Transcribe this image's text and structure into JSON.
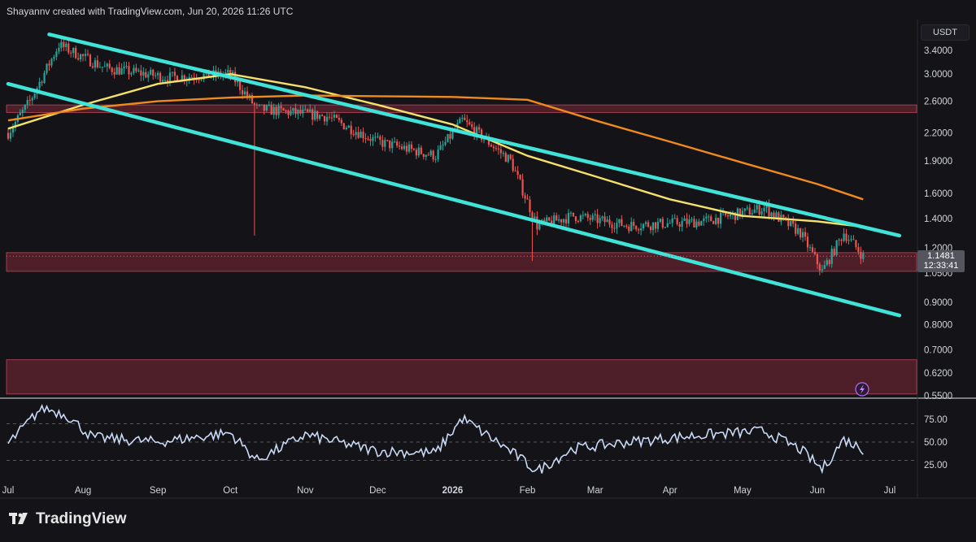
{
  "header": {
    "attribution": "Shayannv created with TradingView.com, Jun 20, 2026 11:26 UTC"
  },
  "currency": "USDT",
  "last_price": {
    "value": "1.1481",
    "countdown": "12:33:41"
  },
  "brand": {
    "name": "TradingView"
  },
  "colors": {
    "background": "#141418",
    "up_candle": "#26a69a",
    "down_candle": "#ef5350",
    "channel": "#3fe3d8",
    "ma_fast": "#f5e06a",
    "ma_slow": "#f08a1c",
    "zone": "#8a2a3a",
    "rsi_line": "#c9d9f5"
  },
  "chart_data": [
    {
      "type": "candlestick",
      "title": "",
      "y_axis": {
        "scale": "log",
        "ticks": [
          "3.4000",
          "3.0000",
          "2.6000",
          "2.2000",
          "1.9000",
          "1.6000",
          "1.4000",
          "1.2000",
          "1.0500",
          "0.9000",
          "0.8000",
          "0.7000",
          "0.6200",
          "0.5500"
        ]
      },
      "x_axis": {
        "ticks": [
          "Jul",
          "Aug",
          "Sep",
          "Oct",
          "Nov",
          "Dec",
          "2026",
          "Feb",
          "Mar",
          "Apr",
          "May",
          "Jun",
          "Jul"
        ]
      },
      "key_points": [
        {
          "date": "2025-07-01",
          "close": 2.2
        },
        {
          "date": "2025-07-10",
          "close": 2.6
        },
        {
          "date": "2025-07-22",
          "close": 3.5
        },
        {
          "date": "2025-08-10",
          "close": 3.1
        },
        {
          "date": "2025-09-05",
          "close": 2.95
        },
        {
          "date": "2025-10-01",
          "close": 3.0
        },
        {
          "date": "2025-10-12",
          "close": 2.5
        },
        {
          "date": "2025-11-10",
          "close": 2.4
        },
        {
          "date": "2025-12-01",
          "close": 2.1
        },
        {
          "date": "2025-12-25",
          "close": 1.95
        },
        {
          "date": "2026-01-05",
          "close": 2.35
        },
        {
          "date": "2026-01-25",
          "close": 1.9
        },
        {
          "date": "2026-02-05",
          "close": 1.35
        },
        {
          "date": "2026-02-20",
          "close": 1.42
        },
        {
          "date": "2026-03-15",
          "close": 1.35
        },
        {
          "date": "2026-04-15",
          "close": 1.38
        },
        {
          "date": "2026-05-10",
          "close": 1.48
        },
        {
          "date": "2026-05-25",
          "close": 1.3
        },
        {
          "date": "2026-06-03",
          "close": 1.06
        },
        {
          "date": "2026-06-12",
          "close": 1.3
        },
        {
          "date": "2026-06-20",
          "close": 1.1481
        }
      ],
      "wicks": [
        {
          "date": "2025-10-11",
          "low": 1.28
        },
        {
          "date": "2026-02-03",
          "low": 1.12
        },
        {
          "date": "2026-01-05",
          "high": 2.4
        },
        {
          "date": "2026-05-12",
          "high": 1.55
        },
        {
          "date": "2026-06-03",
          "low": 1.05
        }
      ],
      "moving_averages": [
        {
          "color": "ma_fast",
          "points": [
            {
              "date": "2025-07-01",
              "value": 2.25
            },
            {
              "date": "2025-08-01",
              "value": 2.55
            },
            {
              "date": "2025-09-01",
              "value": 2.85
            },
            {
              "date": "2025-10-01",
              "value": 3.0
            },
            {
              "date": "2025-11-01",
              "value": 2.8
            },
            {
              "date": "2025-12-01",
              "value": 2.55
            },
            {
              "date": "2026-01-01",
              "value": 2.3
            },
            {
              "date": "2026-02-01",
              "value": 1.95
            },
            {
              "date": "2026-03-01",
              "value": 1.75
            },
            {
              "date": "2026-04-01",
              "value": 1.55
            },
            {
              "date": "2026-05-01",
              "value": 1.42
            },
            {
              "date": "2026-06-01",
              "value": 1.38
            },
            {
              "date": "2026-06-20",
              "value": 1.34
            }
          ]
        },
        {
          "color": "ma_slow",
          "points": [
            {
              "date": "2025-07-01",
              "value": 2.35
            },
            {
              "date": "2025-08-01",
              "value": 2.5
            },
            {
              "date": "2025-09-01",
              "value": 2.6
            },
            {
              "date": "2025-10-01",
              "value": 2.65
            },
            {
              "date": "2025-11-01",
              "value": 2.68
            },
            {
              "date": "2025-12-01",
              "value": 2.67
            },
            {
              "date": "2026-01-01",
              "value": 2.66
            },
            {
              "date": "2026-02-01",
              "value": 2.62
            },
            {
              "date": "2026-03-01",
              "value": 2.35
            },
            {
              "date": "2026-04-01",
              "value": 2.1
            },
            {
              "date": "2026-05-01",
              "value": 1.88
            },
            {
              "date": "2026-06-01",
              "value": 1.68
            },
            {
              "date": "2026-06-20",
              "value": 1.55
            }
          ]
        }
      ],
      "channel": {
        "upper": [
          {
            "date": "2025-07-18",
            "value": 3.7
          },
          {
            "date": "2026-07-05",
            "value": 1.28
          }
        ],
        "lower": [
          {
            "date": "2025-07-01",
            "value": 2.85
          },
          {
            "date": "2026-07-05",
            "value": 0.84
          }
        ]
      },
      "zones": [
        {
          "low": 2.45,
          "high": 2.55
        },
        {
          "low": 1.06,
          "high": 1.17
        },
        {
          "low": 0.555,
          "high": 0.665
        }
      ],
      "last_price": 1.1481
    },
    {
      "type": "line",
      "title": "",
      "y_axis": {
        "range": [
          10,
          92
        ],
        "ticks": [
          "75.00",
          "50.00",
          "25.00"
        ]
      },
      "reference_lines": [
        70,
        50,
        30
      ],
      "key_points": [
        {
          "date": "2025-07-01",
          "value": 48
        },
        {
          "date": "2025-07-15",
          "value": 88
        },
        {
          "date": "2025-07-25",
          "value": 80
        },
        {
          "date": "2025-08-05",
          "value": 55
        },
        {
          "date": "2025-09-01",
          "value": 50
        },
        {
          "date": "2025-10-01",
          "value": 60
        },
        {
          "date": "2025-10-12",
          "value": 30
        },
        {
          "date": "2025-11-01",
          "value": 58
        },
        {
          "date": "2025-12-01",
          "value": 40
        },
        {
          "date": "2025-12-25",
          "value": 38
        },
        {
          "date": "2026-01-05",
          "value": 76
        },
        {
          "date": "2026-01-25",
          "value": 40
        },
        {
          "date": "2026-02-05",
          "value": 18
        },
        {
          "date": "2026-02-20",
          "value": 43
        },
        {
          "date": "2026-03-15",
          "value": 50
        },
        {
          "date": "2026-04-15",
          "value": 58
        },
        {
          "date": "2026-05-10",
          "value": 62
        },
        {
          "date": "2026-05-25",
          "value": 42
        },
        {
          "date": "2026-06-03",
          "value": 20
        },
        {
          "date": "2026-06-12",
          "value": 53
        },
        {
          "date": "2026-06-20",
          "value": 42
        }
      ]
    }
  ]
}
